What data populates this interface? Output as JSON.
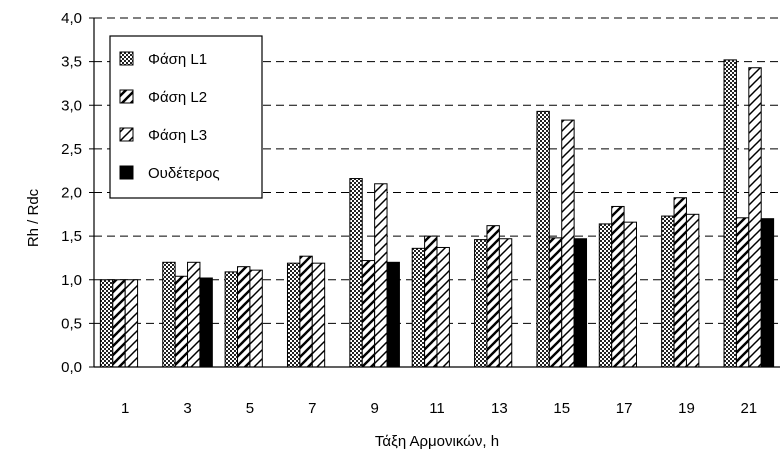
{
  "chart_data": {
    "type": "bar",
    "title": "",
    "xlabel": "Τάξη Αρμονικών, h",
    "ylabel": "Rh / Rdc",
    "ylim": [
      0,
      4
    ],
    "yticks": [
      0,
      0.5,
      1,
      1.5,
      2,
      2.5,
      3,
      3.5,
      4
    ],
    "ytick_labels": [
      "0,0",
      "0,5",
      "1,0",
      "1,5",
      "2,0",
      "2,5",
      "3,0",
      "3,5",
      "4,0"
    ],
    "grid": "horizontal-dashed",
    "legend_position": "top-left",
    "categories": [
      "1",
      "3",
      "5",
      "7",
      "9",
      "11",
      "13",
      "15",
      "17",
      "19",
      "21"
    ],
    "series": [
      {
        "name": "Φάση L1",
        "pattern": "checker",
        "values": [
          1.0,
          1.2,
          1.09,
          1.19,
          2.16,
          1.36,
          1.46,
          2.93,
          1.64,
          1.73,
          3.52
        ]
      },
      {
        "name": "Φάση L2",
        "pattern": "diagonal",
        "values": [
          1.0,
          1.04,
          1.15,
          1.27,
          1.22,
          1.5,
          1.62,
          1.48,
          1.84,
          1.94,
          1.71
        ]
      },
      {
        "name": "Φάση L3",
        "pattern": "diagonal-light",
        "values": [
          1.0,
          1.2,
          1.11,
          1.19,
          2.1,
          1.37,
          1.47,
          2.83,
          1.66,
          1.75,
          3.43
        ]
      },
      {
        "name": "Ουδέτερος",
        "pattern": "solid-black",
        "values": [
          null,
          1.02,
          null,
          null,
          1.2,
          null,
          null,
          1.47,
          null,
          null,
          1.7
        ]
      }
    ]
  }
}
